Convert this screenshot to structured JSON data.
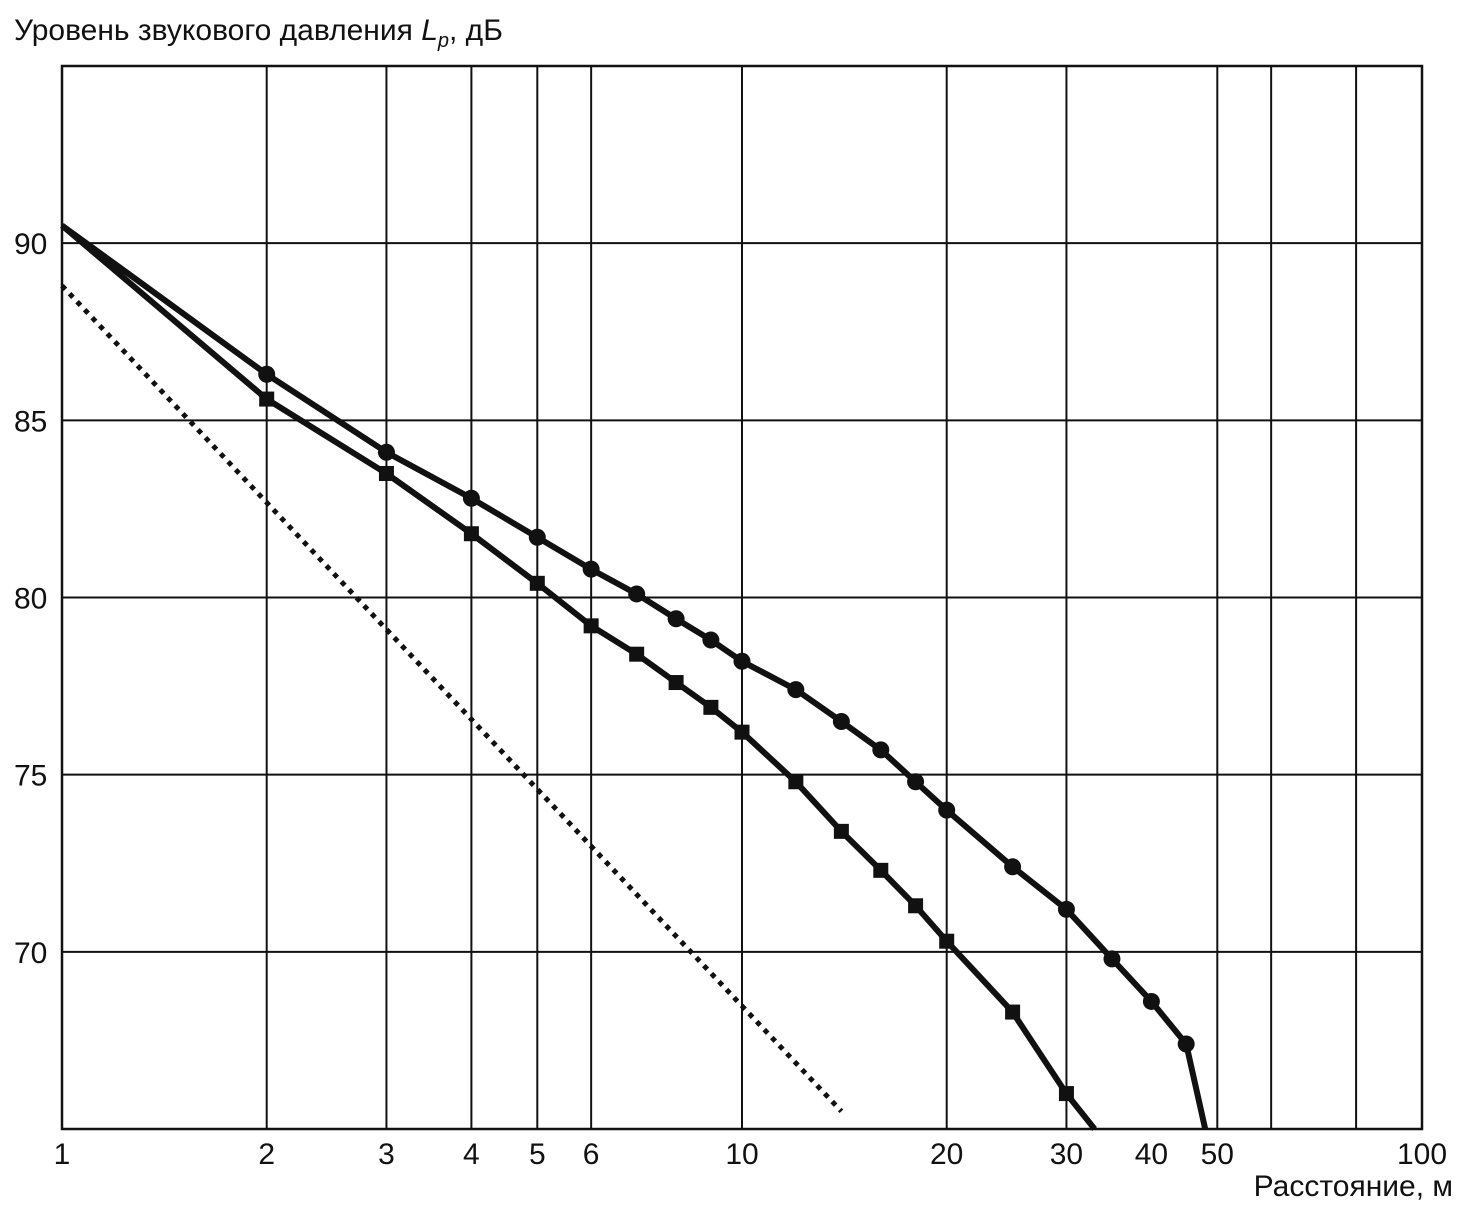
{
  "chart_data": {
    "type": "line",
    "ylabel": {
      "prefix": "Уровень звукового давления ",
      "symbol": "L",
      "subscript": "p",
      "suffix": ", дБ"
    },
    "xlabel": "Расстояние, м",
    "xscale": "log",
    "xlim": [
      1,
      100
    ],
    "ylim": [
      65,
      95
    ],
    "grid": true,
    "xticks": [
      1,
      2,
      3,
      4,
      5,
      6,
      10,
      20,
      30,
      40,
      50,
      100
    ],
    "xtick_labels": [
      "1",
      "2",
      "3",
      "4",
      "5",
      "6",
      "10",
      "20",
      "30",
      "40",
      "50",
      "100"
    ],
    "xgrid": [
      2,
      3,
      4,
      5,
      6,
      10,
      20,
      30,
      50,
      60,
      80
    ],
    "yticks": [
      70,
      75,
      80,
      85,
      90
    ],
    "ytick_labels": [
      "70",
      "75",
      "80",
      "85",
      "90"
    ],
    "series": [
      {
        "marker": "circle",
        "style": "solid",
        "x": [
          1,
          2,
          3,
          4,
          5,
          6,
          7,
          8,
          9,
          10,
          12,
          14,
          16,
          18,
          20,
          25,
          30,
          35,
          40,
          45,
          48
        ],
        "y": [
          90.5,
          86.3,
          84.1,
          82.8,
          81.7,
          80.8,
          80.1,
          79.4,
          78.8,
          78.2,
          77.4,
          76.5,
          75.7,
          74.8,
          74.0,
          72.4,
          71.2,
          69.8,
          68.6,
          67.4,
          65.0
        ]
      },
      {
        "marker": "square",
        "style": "solid",
        "x": [
          1,
          2,
          3,
          4,
          5,
          6,
          7,
          8,
          9,
          10,
          12,
          14,
          16,
          18,
          20,
          25,
          30,
          33
        ],
        "y": [
          90.5,
          85.6,
          83.5,
          81.8,
          80.4,
          79.2,
          78.4,
          77.6,
          76.9,
          76.2,
          74.8,
          73.4,
          72.3,
          71.3,
          70.3,
          68.3,
          66.0,
          65.0
        ]
      },
      {
        "marker": "none",
        "style": "dotted",
        "x": [
          1,
          14
        ],
        "y": [
          88.8,
          65.5
        ]
      }
    ]
  }
}
